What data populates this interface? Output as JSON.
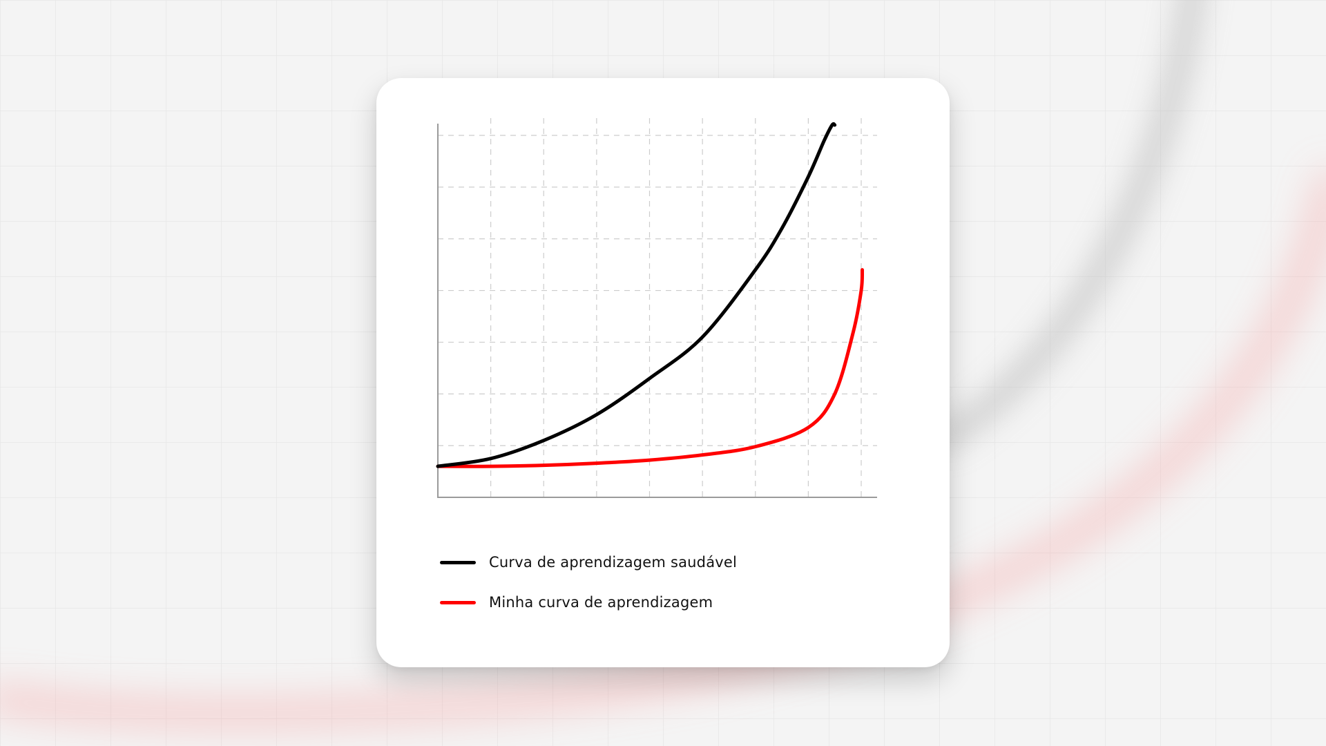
{
  "colors": {
    "background": "#f4f4f4",
    "card": "#ffffff",
    "grid": "#cccccc",
    "axis": "#9a9a9a",
    "healthy_curve": "#000000",
    "my_curve": "#ff0000"
  },
  "chart_data": {
    "type": "line",
    "title": "",
    "xlabel": "",
    "ylabel": "",
    "grid": true,
    "legend_position": "bottom",
    "xlim": [
      0,
      8.3
    ],
    "ylim": [
      0,
      7
    ],
    "x_gridlines": [
      1,
      2,
      3,
      4,
      5,
      6,
      7,
      8
    ],
    "y_gridlines": [
      1,
      2,
      3,
      4,
      5,
      6,
      7
    ],
    "series": [
      {
        "name": "Curva de aprendizagem saudável",
        "color": "#000000",
        "x": [
          0,
          1,
          2,
          3,
          4,
          5,
          6,
          6.5,
          7,
          7.3,
          7.45,
          7.5
        ],
        "y": [
          0.6,
          0.75,
          1.1,
          1.6,
          2.3,
          3.1,
          4.4,
          5.2,
          6.2,
          6.9,
          7.2,
          7.2
        ]
      },
      {
        "name": "Minha curva de aprendizagem",
        "color": "#ff0000",
        "x": [
          0,
          1,
          2,
          3,
          4,
          5,
          6,
          7,
          7.5,
          7.85,
          8.0,
          8.02
        ],
        "y": [
          0.6,
          0.6,
          0.62,
          0.66,
          0.72,
          0.82,
          0.98,
          1.35,
          2.0,
          3.2,
          4.0,
          4.4
        ]
      }
    ]
  }
}
